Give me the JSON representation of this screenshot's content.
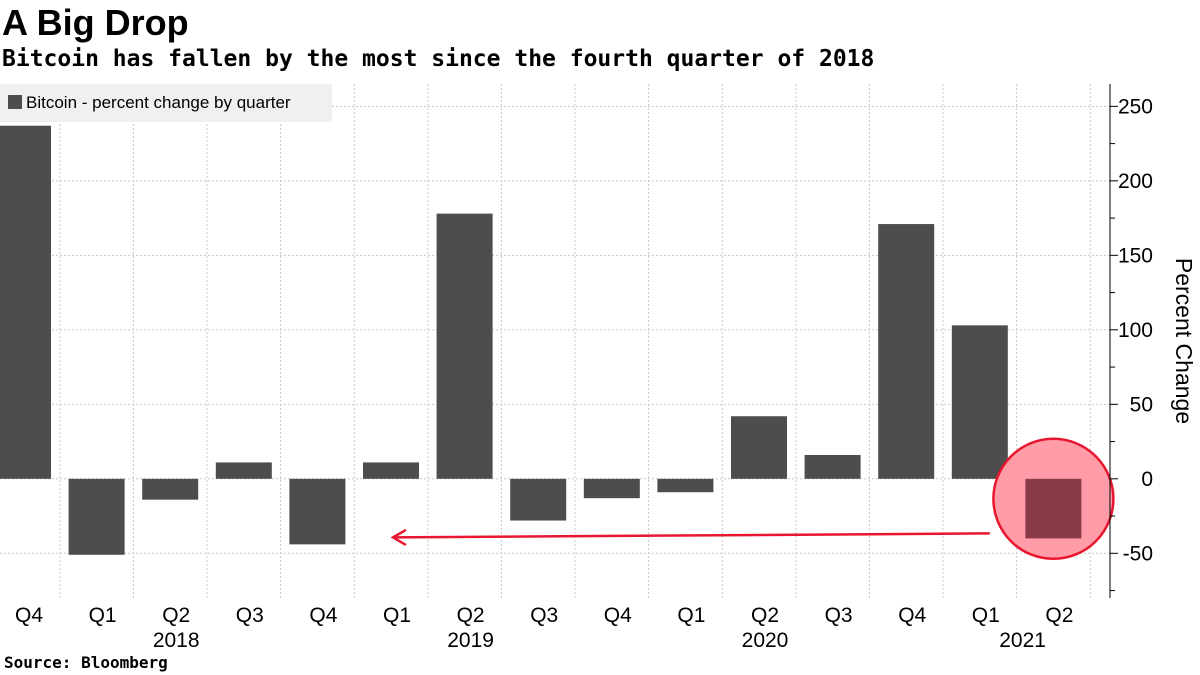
{
  "title": "A Big Drop",
  "subtitle": "Bitcoin has fallen by the most since the fourth quarter of 2018",
  "source": "Source:  Bloomberg",
  "chart_data": {
    "type": "bar",
    "categories": [
      "Q4",
      "Q1",
      "Q2",
      "Q3",
      "Q4",
      "Q1",
      "Q2",
      "Q3",
      "Q4",
      "Q1",
      "Q2",
      "Q3",
      "Q4",
      "Q1",
      "Q2"
    ],
    "year_labels": [
      {
        "label": "2018",
        "category_index": 2
      },
      {
        "label": "2019",
        "category_index": 6
      },
      {
        "label": "2020",
        "category_index": 10
      },
      {
        "label": "2021",
        "category_index": 13.5
      }
    ],
    "series": [
      {
        "name": "Bitcoin - percent change by quarter",
        "values": [
          237,
          -51,
          -14,
          11,
          -44,
          11,
          178,
          -28,
          -13,
          -9,
          42,
          16,
          171,
          103,
          -40
        ]
      }
    ],
    "highlight_index": 14,
    "annotation_arrow": {
      "from_category_index": 13,
      "to_category_index": 5,
      "y_value": -38
    },
    "ylabel": "Percent Change",
    "xlabel": "",
    "ylim": [
      -80,
      265
    ],
    "yticks": [
      -50,
      0,
      50,
      100,
      150,
      200,
      250
    ],
    "grid": true,
    "legend_position": "top-left",
    "y_axis_side": "right",
    "colors": {
      "bar": "#4d4d4d",
      "highlight_circle": "#ff9ca8",
      "highlight_stroke": "#e8172f",
      "highlight_bar": "#8b3b47",
      "arrow": "#e8172f",
      "grid": "#c8c8c8",
      "legend_bg": "#f0f0f0"
    }
  }
}
